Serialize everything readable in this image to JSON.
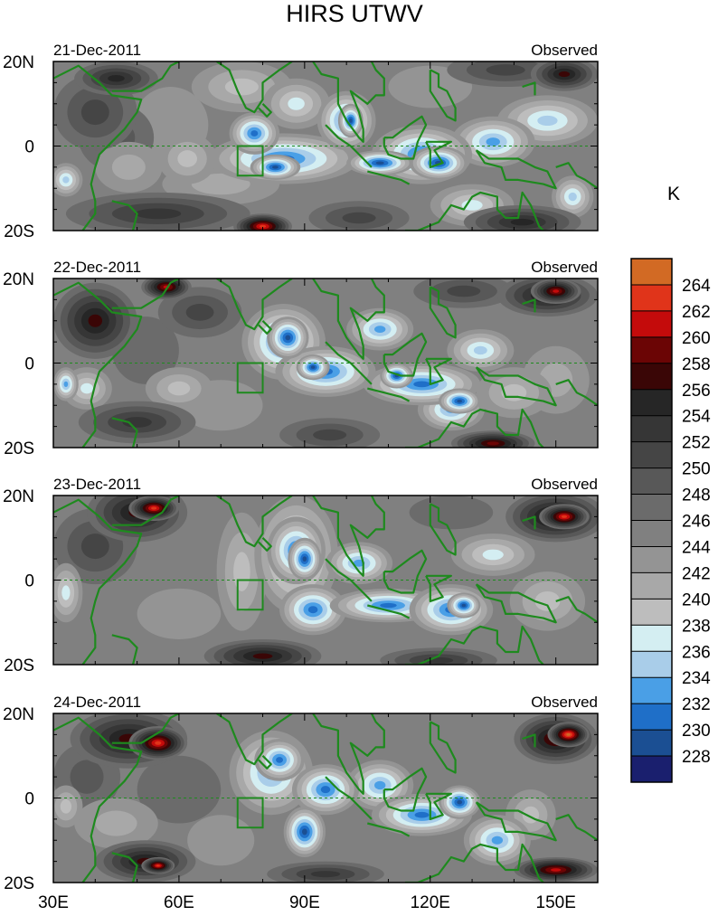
{
  "chart_data": {
    "type": "heatmap",
    "title": "HIRS UTWV",
    "units": "K",
    "colorbar": {
      "levels": [
        228,
        230,
        232,
        234,
        236,
        238,
        240,
        242,
        244,
        246,
        248,
        250,
        252,
        254,
        256,
        258,
        260,
        262,
        264
      ],
      "colors": [
        "#1a1f6e",
        "#1b4f93",
        "#1f6fc8",
        "#4a9fe6",
        "#a9cde9",
        "#d4eef2",
        "#bdbdbd",
        "#a8a8a8",
        "#949494",
        "#808080",
        "#6b6b6b",
        "#585858",
        "#454545",
        "#363636",
        "#262626",
        "#3a0606",
        "#6b0505",
        "#c40b0b",
        "#e0341a",
        "#d26a24"
      ]
    },
    "x_axis": {
      "range": [
        30,
        160
      ],
      "ticks": [
        30,
        60,
        90,
        120,
        150
      ],
      "tick_labels": [
        "30E",
        "60E",
        "90E",
        "120E",
        "150E"
      ]
    },
    "y_axis": {
      "range": [
        -20,
        20
      ],
      "ticks": [
        20,
        0,
        -20
      ],
      "tick_labels": [
        "20N",
        "0",
        "20S"
      ]
    },
    "panels": [
      {
        "date": "21-Dec-2011",
        "label": "Observed",
        "features": [
          {
            "lon": 40,
            "lat": 8,
            "value": 250,
            "rx": 10,
            "ry": 9
          },
          {
            "lon": 45,
            "lat": 2,
            "value": 248,
            "rx": 9,
            "ry": 8
          },
          {
            "lon": 58,
            "lat": 5,
            "value": 242,
            "rx": 9,
            "ry": 9
          },
          {
            "lon": 33,
            "lat": -8,
            "value": 234,
            "rx": 4,
            "ry": 4
          },
          {
            "lon": 48,
            "lat": -5,
            "value": 240,
            "rx": 8,
            "ry": 6
          },
          {
            "lon": 62,
            "lat": -3,
            "value": 238,
            "rx": 7,
            "ry": 6
          },
          {
            "lon": 45,
            "lat": 16,
            "value": 254,
            "rx": 10,
            "ry": 4
          },
          {
            "lon": 55,
            "lat": -16,
            "value": 252,
            "rx": 22,
            "ry": 5
          },
          {
            "lon": 70,
            "lat": -9,
            "value": 240,
            "rx": 14,
            "ry": 5
          },
          {
            "lon": 80,
            "lat": -19,
            "value": 262,
            "rx": 7,
            "ry": 3
          },
          {
            "lon": 75,
            "lat": 14,
            "value": 238,
            "rx": 12,
            "ry": 6
          },
          {
            "lon": 85,
            "lat": -3,
            "value": 230,
            "rx": 18,
            "ry": 6
          },
          {
            "lon": 83,
            "lat": -5,
            "value": 228,
            "rx": 6,
            "ry": 3
          },
          {
            "lon": 78,
            "lat": 3,
            "value": 230,
            "rx": 6,
            "ry": 5
          },
          {
            "lon": 88,
            "lat": 10,
            "value": 236,
            "rx": 8,
            "ry": 6
          },
          {
            "lon": 100,
            "lat": 6,
            "value": 230,
            "rx": 7,
            "ry": 7
          },
          {
            "lon": 101,
            "lat": 6,
            "value": 228,
            "rx": 3,
            "ry": 4
          },
          {
            "lon": 108,
            "lat": -4,
            "value": 228,
            "rx": 8,
            "ry": 3
          },
          {
            "lon": 118,
            "lat": -2,
            "value": 230,
            "rx": 12,
            "ry": 7
          },
          {
            "lon": 122,
            "lat": -4,
            "value": 228,
            "rx": 7,
            "ry": 4
          },
          {
            "lon": 135,
            "lat": 1,
            "value": 232,
            "rx": 10,
            "ry": 6
          },
          {
            "lon": 148,
            "lat": 6,
            "value": 234,
            "rx": 12,
            "ry": 6
          },
          {
            "lon": 154,
            "lat": -12,
            "value": 234,
            "rx": 5,
            "ry": 5
          },
          {
            "lon": 130,
            "lat": -14,
            "value": 236,
            "rx": 10,
            "ry": 5
          },
          {
            "lon": 120,
            "lat": 14,
            "value": 242,
            "rx": 10,
            "ry": 5
          },
          {
            "lon": 138,
            "lat": 18,
            "value": 250,
            "rx": 14,
            "ry": 4
          },
          {
            "lon": 152,
            "lat": 17,
            "value": 256,
            "rx": 8,
            "ry": 4
          },
          {
            "lon": 142,
            "lat": -18,
            "value": 254,
            "rx": 14,
            "ry": 4
          },
          {
            "lon": 103,
            "lat": -17,
            "value": 250,
            "rx": 12,
            "ry": 4
          }
        ]
      },
      {
        "date": "22-Dec-2011",
        "label": "Observed",
        "features": [
          {
            "lon": 40,
            "lat": 10,
            "value": 256,
            "rx": 10,
            "ry": 9
          },
          {
            "lon": 57,
            "lat": 18,
            "value": 260,
            "rx": 6,
            "ry": 3
          },
          {
            "lon": 52,
            "lat": 3,
            "value": 246,
            "rx": 8,
            "ry": 8
          },
          {
            "lon": 33,
            "lat": -5,
            "value": 232,
            "rx": 3,
            "ry": 4
          },
          {
            "lon": 38,
            "lat": -6,
            "value": 236,
            "rx": 6,
            "ry": 5
          },
          {
            "lon": 60,
            "lat": -6,
            "value": 238,
            "rx": 8,
            "ry": 5
          },
          {
            "lon": 50,
            "lat": -14,
            "value": 252,
            "rx": 14,
            "ry": 5
          },
          {
            "lon": 65,
            "lat": 12,
            "value": 250,
            "rx": 10,
            "ry": 6
          },
          {
            "lon": 85,
            "lat": 5,
            "value": 230,
            "rx": 10,
            "ry": 9
          },
          {
            "lon": 86,
            "lat": 6,
            "value": 228,
            "rx": 5,
            "ry": 5
          },
          {
            "lon": 95,
            "lat": -2,
            "value": 230,
            "rx": 12,
            "ry": 6
          },
          {
            "lon": 92,
            "lat": -1,
            "value": 228,
            "rx": 4,
            "ry": 3
          },
          {
            "lon": 108,
            "lat": 8,
            "value": 232,
            "rx": 8,
            "ry": 5
          },
          {
            "lon": 118,
            "lat": -5,
            "value": 230,
            "rx": 14,
            "ry": 5
          },
          {
            "lon": 112,
            "lat": -3,
            "value": 228,
            "rx": 4,
            "ry": 3
          },
          {
            "lon": 127,
            "lat": -9,
            "value": 228,
            "rx": 5,
            "ry": 3
          },
          {
            "lon": 132,
            "lat": 3,
            "value": 234,
            "rx": 8,
            "ry": 5
          },
          {
            "lon": 125,
            "lat": -11,
            "value": 232,
            "rx": 8,
            "ry": 5
          },
          {
            "lon": 140,
            "lat": -7,
            "value": 238,
            "rx": 9,
            "ry": 6
          },
          {
            "lon": 150,
            "lat": -4,
            "value": 240,
            "rx": 8,
            "ry": 8
          },
          {
            "lon": 128,
            "lat": 17,
            "value": 250,
            "rx": 12,
            "ry": 4
          },
          {
            "lon": 148,
            "lat": 16,
            "value": 256,
            "rx": 12,
            "ry": 5
          },
          {
            "lon": 150,
            "lat": 17,
            "value": 260,
            "rx": 6,
            "ry": 3
          },
          {
            "lon": 96,
            "lat": -17,
            "value": 250,
            "rx": 12,
            "ry": 4
          },
          {
            "lon": 135,
            "lat": -19,
            "value": 258,
            "rx": 10,
            "ry": 3
          },
          {
            "lon": 70,
            "lat": -10,
            "value": 242,
            "rx": 10,
            "ry": 6
          }
        ]
      },
      {
        "date": "23-Dec-2011",
        "label": "Observed",
        "features": [
          {
            "lon": 50,
            "lat": 16,
            "value": 256,
            "rx": 12,
            "ry": 7
          },
          {
            "lon": 54,
            "lat": 17,
            "value": 262,
            "rx": 6,
            "ry": 3
          },
          {
            "lon": 40,
            "lat": 8,
            "value": 250,
            "rx": 10,
            "ry": 9
          },
          {
            "lon": 33,
            "lat": -3,
            "value": 236,
            "rx": 4,
            "ry": 7
          },
          {
            "lon": 55,
            "lat": 2,
            "value": 244,
            "rx": 10,
            "ry": 8
          },
          {
            "lon": 60,
            "lat": -8,
            "value": 242,
            "rx": 10,
            "ry": 6
          },
          {
            "lon": 75,
            "lat": 2,
            "value": 238,
            "rx": 6,
            "ry": 14
          },
          {
            "lon": 88,
            "lat": 6,
            "value": 232,
            "rx": 10,
            "ry": 14
          },
          {
            "lon": 88,
            "lat": 7,
            "value": 230,
            "rx": 7,
            "ry": 8
          },
          {
            "lon": 90,
            "lat": 5,
            "value": 228,
            "rx": 4,
            "ry": 5
          },
          {
            "lon": 92,
            "lat": -7,
            "value": 230,
            "rx": 8,
            "ry": 6
          },
          {
            "lon": 103,
            "lat": 4,
            "value": 232,
            "rx": 8,
            "ry": 5
          },
          {
            "lon": 110,
            "lat": -6,
            "value": 230,
            "rx": 14,
            "ry": 4
          },
          {
            "lon": 125,
            "lat": -7,
            "value": 230,
            "rx": 10,
            "ry": 6
          },
          {
            "lon": 128,
            "lat": -6,
            "value": 228,
            "rx": 4,
            "ry": 3
          },
          {
            "lon": 135,
            "lat": 6,
            "value": 236,
            "rx": 10,
            "ry": 5
          },
          {
            "lon": 148,
            "lat": -5,
            "value": 238,
            "rx": 9,
            "ry": 7
          },
          {
            "lon": 150,
            "lat": 15,
            "value": 258,
            "rx": 12,
            "ry": 6
          },
          {
            "lon": 152,
            "lat": 15,
            "value": 262,
            "rx": 6,
            "ry": 3
          },
          {
            "lon": 125,
            "lat": 16,
            "value": 246,
            "rx": 10,
            "ry": 4
          },
          {
            "lon": 80,
            "lat": -18,
            "value": 256,
            "rx": 14,
            "ry": 4
          },
          {
            "lon": 122,
            "lat": -19,
            "value": 252,
            "rx": 14,
            "ry": 3
          },
          {
            "lon": 70,
            "lat": 15,
            "value": 244,
            "rx": 10,
            "ry": 4
          }
        ]
      },
      {
        "date": "24-Dec-2011",
        "label": "Observed",
        "features": [
          {
            "lon": 48,
            "lat": 14,
            "value": 256,
            "rx": 14,
            "ry": 7
          },
          {
            "lon": 55,
            "lat": 13,
            "value": 262,
            "rx": 7,
            "ry": 4
          },
          {
            "lon": 38,
            "lat": 5,
            "value": 248,
            "rx": 8,
            "ry": 8
          },
          {
            "lon": 33,
            "lat": -2,
            "value": 238,
            "rx": 4,
            "ry": 5
          },
          {
            "lon": 45,
            "lat": -6,
            "value": 240,
            "rx": 10,
            "ry": 6
          },
          {
            "lon": 60,
            "lat": 2,
            "value": 246,
            "rx": 10,
            "ry": 8
          },
          {
            "lon": 52,
            "lat": -15,
            "value": 256,
            "rx": 12,
            "ry": 5
          },
          {
            "lon": 55,
            "lat": -16,
            "value": 262,
            "rx": 4,
            "ry": 2
          },
          {
            "lon": 82,
            "lat": 6,
            "value": 232,
            "rx": 10,
            "ry": 10
          },
          {
            "lon": 84,
            "lat": 9,
            "value": 230,
            "rx": 6,
            "ry": 5
          },
          {
            "lon": 90,
            "lat": -8,
            "value": 228,
            "rx": 5,
            "ry": 6
          },
          {
            "lon": 95,
            "lat": 2,
            "value": 230,
            "rx": 8,
            "ry": 6
          },
          {
            "lon": 108,
            "lat": 3,
            "value": 232,
            "rx": 8,
            "ry": 6
          },
          {
            "lon": 118,
            "lat": -4,
            "value": 230,
            "rx": 12,
            "ry": 5
          },
          {
            "lon": 127,
            "lat": -1,
            "value": 228,
            "rx": 5,
            "ry": 4
          },
          {
            "lon": 136,
            "lat": -10,
            "value": 232,
            "rx": 8,
            "ry": 6
          },
          {
            "lon": 150,
            "lat": 14,
            "value": 258,
            "rx": 10,
            "ry": 6
          },
          {
            "lon": 153,
            "lat": 15,
            "value": 264,
            "rx": 5,
            "ry": 3
          },
          {
            "lon": 150,
            "lat": -17,
            "value": 260,
            "rx": 10,
            "ry": 3
          },
          {
            "lon": 95,
            "lat": -18,
            "value": 252,
            "rx": 14,
            "ry": 3
          },
          {
            "lon": 70,
            "lat": -10,
            "value": 242,
            "rx": 8,
            "ry": 6
          },
          {
            "lon": 125,
            "lat": 14,
            "value": 244,
            "rx": 10,
            "ry": 4
          },
          {
            "lon": 144,
            "lat": -4,
            "value": 238,
            "rx": 6,
            "ry": 6
          }
        ]
      }
    ]
  }
}
